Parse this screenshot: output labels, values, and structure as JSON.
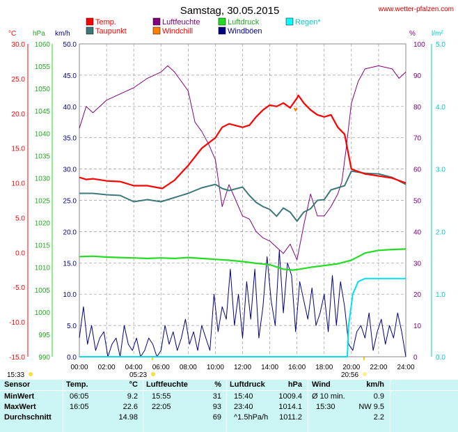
{
  "title": "Samstag, 30.05.2015",
  "website": "www.wetter-pfalzen.com",
  "units": {
    "temp": "°C",
    "pressure": "hPa",
    "wind": "km/h",
    "humidity": "%",
    "rain": "l/m²"
  },
  "colors": {
    "temp": "#ff0000",
    "dewpoint": "#3d7878",
    "humidity": "#800080",
    "windchill": "#ff8000",
    "pressure": "#22dd22",
    "gusts": "#000080",
    "rain": "#00e0f0"
  },
  "legend": [
    {
      "label": "Temp.",
      "color": "#ff0000",
      "text_color": "#ff0000"
    },
    {
      "label": "Luftfeuchte",
      "color": "#800080",
      "text_color": "#800080"
    },
    {
      "label": "Luftdruck",
      "color": "#22dd22",
      "text_color": "#22aa22"
    },
    {
      "label": "Regen*",
      "color": "#00ffff",
      "text_color": "#00cccc"
    },
    {
      "label": "Taupunkt",
      "color": "#3d7878",
      "text_color": "#ff0000"
    },
    {
      "label": "Windchill",
      "color": "#ff8000",
      "text_color": "#ff0000"
    },
    {
      "label": "Windböen",
      "color": "#000080",
      "text_color": "#000080"
    }
  ],
  "sun_labels": {
    "sunrise": "05:23",
    "sunset": "20:56",
    "left": "15:33"
  },
  "chart_data": {
    "type": "line",
    "x_ticks": [
      "00:00",
      "02:00",
      "04:00",
      "06:00",
      "08:00",
      "10:00",
      "12:00",
      "14:00",
      "16:00",
      "18:00",
      "20:00",
      "22:00",
      "24:00"
    ],
    "axes": {
      "temp": {
        "unit": "°C",
        "range": [
          -15,
          30
        ],
        "ticks": [
          "30.0",
          "25.0",
          "20.0",
          "15.0",
          "10.0",
          "5.0",
          "0.0",
          "-5.0",
          "-10.0",
          "-15.0"
        ]
      },
      "pressure": {
        "unit": "hPa",
        "range": [
          990,
          1060
        ],
        "ticks": [
          "1060",
          "1055",
          "1050",
          "1045",
          "1040",
          "1035",
          "1030",
          "1025",
          "1020",
          "1015",
          "1010",
          "1005",
          "1000",
          "995",
          "990"
        ]
      },
      "wind": {
        "unit": "km/h",
        "range": [
          0,
          50
        ],
        "ticks": [
          "50.0",
          "45.0",
          "40.0",
          "35.0",
          "30.0",
          "25.0",
          "20.0",
          "15.0",
          "10.0",
          "5.0",
          "0.0"
        ]
      },
      "humidity": {
        "unit": "%",
        "range": [
          0,
          100
        ],
        "ticks": [
          "100",
          "90",
          "80",
          "70",
          "60",
          "50",
          "40",
          "30",
          "20",
          "10",
          "0"
        ]
      },
      "rain": {
        "unit": "l/m²",
        "range": [
          0,
          5
        ],
        "ticks": [
          "5.0",
          "4.0",
          "3.0",
          "2.0",
          "1.0",
          "0.0"
        ]
      }
    },
    "series": [
      {
        "name": "Temp.",
        "axis": "temp",
        "x": [
          0,
          0.5,
          1,
          2,
          3,
          4,
          5,
          6.1,
          7,
          8,
          9,
          10,
          10.5,
          11,
          12,
          12.5,
          13,
          13.5,
          14,
          14.5,
          15,
          15.5,
          16,
          16.1,
          16.5,
          17,
          17.5,
          18,
          18.5,
          19,
          19.5,
          20,
          21,
          22,
          23,
          24
        ],
        "y": [
          10.8,
          10.5,
          10.6,
          10.3,
          10.2,
          9.6,
          9.6,
          9.2,
          10.4,
          12.5,
          15,
          16.5,
          18,
          18.5,
          18,
          18.3,
          19.5,
          20.5,
          21.2,
          21,
          21.5,
          20.8,
          22.2,
          22.6,
          21.5,
          20.5,
          19.8,
          19.5,
          19.8,
          18,
          17,
          12,
          11.3,
          11,
          10.7,
          10
        ]
      },
      {
        "name": "Taupunkt",
        "axis": "temp",
        "x": [
          0,
          1,
          2,
          3,
          4,
          5,
          6,
          7,
          8,
          9,
          10,
          10.5,
          11,
          12,
          12.5,
          13,
          13.5,
          14,
          14.5,
          15,
          15.5,
          16,
          16.5,
          17,
          17.5,
          18,
          18.5,
          19,
          19.5,
          20,
          21,
          22,
          23,
          24
        ],
        "y": [
          8.5,
          8.5,
          8.3,
          8.2,
          7.3,
          7.6,
          7.3,
          7.9,
          8.5,
          9.3,
          9.8,
          9.2,
          8.9,
          9.4,
          8.2,
          7.2,
          6.6,
          6.2,
          5.2,
          6.4,
          5.8,
          4.5,
          5.8,
          6.3,
          7.5,
          7.6,
          9.0,
          9.3,
          9.6,
          11.7,
          11.4,
          11.3,
          10.8,
          9.8
        ]
      },
      {
        "name": "Windchill",
        "axis": "temp",
        "x": [
          15.8,
          15.9,
          16
        ],
        "y": [
          20.8,
          20.4,
          20.8
        ]
      },
      {
        "name": "Luftfeuchte",
        "axis": "humidity",
        "x": [
          0,
          0.5,
          1,
          2,
          3,
          4,
          5,
          6,
          6.5,
          7,
          8,
          8.5,
          9,
          9.5,
          10,
          10.5,
          11,
          11.5,
          12,
          12.5,
          13,
          13.5,
          14,
          14.5,
          15,
          15.5,
          16,
          16.5,
          17,
          17.5,
          18,
          18.5,
          19,
          19.3,
          19.6,
          20,
          20.5,
          21,
          22,
          23,
          23.5,
          24
        ],
        "y": [
          73,
          80,
          78,
          82,
          84,
          86,
          89,
          91,
          93,
          91,
          85,
          75,
          72,
          68,
          63,
          48,
          55,
          50,
          45,
          44,
          40,
          38,
          37,
          35,
          33,
          36,
          31,
          42,
          52,
          45,
          45,
          48,
          52,
          56,
          66,
          81,
          88,
          92,
          93,
          92,
          89,
          91
        ]
      },
      {
        "name": "Luftdruck",
        "axis": "pressure",
        "x": [
          0,
          1,
          2,
          3,
          4,
          5,
          6,
          7,
          8,
          9,
          10,
          11,
          12,
          13,
          14,
          15,
          15.7,
          16,
          17,
          18,
          19,
          20,
          21,
          22,
          23,
          24
        ],
        "y": [
          1012.4,
          1012.5,
          1012.3,
          1012.2,
          1012.1,
          1012,
          1012.1,
          1012,
          1012.2,
          1012,
          1011.8,
          1011.6,
          1011.3,
          1010.9,
          1010.6,
          1009.6,
          1009.4,
          1009.5,
          1010,
          1010.4,
          1010.8,
          1011.6,
          1013.2,
          1013.8,
          1014,
          1014.1
        ]
      },
      {
        "name": "Windböen",
        "axis": "wind",
        "x": [
          0,
          0.3,
          0.6,
          0.9,
          1.2,
          1.5,
          1.8,
          2.1,
          2.4,
          2.7,
          3,
          3.3,
          3.6,
          3.9,
          4.2,
          4.5,
          4.8,
          5.1,
          5.4,
          5.7,
          6,
          6.3,
          6.6,
          6.9,
          7.2,
          7.5,
          7.8,
          8.1,
          8.4,
          8.7,
          9,
          9.3,
          9.6,
          9.9,
          10.2,
          10.5,
          10.8,
          11.1,
          11.4,
          11.7,
          12,
          12.3,
          12.6,
          12.9,
          13.2,
          13.5,
          13.8,
          14.1,
          14.4,
          14.7,
          15,
          15.3,
          15.6,
          15.9,
          16.2,
          16.5,
          16.8,
          17.1,
          17.4,
          17.7,
          18,
          18.3,
          18.6,
          18.9,
          19.2,
          19.5,
          19.8,
          20.1,
          20.4,
          20.7,
          21,
          21.3,
          21.6,
          21.9,
          22.2,
          22.5,
          22.8,
          23.1,
          23.4,
          23.7,
          24
        ],
        "y": [
          3,
          8,
          2,
          5,
          1,
          3,
          4,
          0,
          2,
          3,
          0,
          5,
          2,
          1,
          3,
          0,
          1,
          3,
          2,
          0,
          1,
          5,
          2,
          4,
          1,
          3,
          6,
          2,
          4,
          1,
          5,
          3,
          1,
          10,
          4,
          8,
          6,
          14,
          5,
          10,
          3,
          12,
          6,
          14,
          3,
          8,
          16,
          9,
          5,
          17,
          7,
          15,
          13,
          4,
          12,
          9,
          6,
          11,
          5,
          7,
          10,
          4,
          13,
          5,
          12,
          8,
          2,
          1,
          4,
          5,
          3,
          7,
          1,
          4,
          6,
          2,
          5,
          3,
          7,
          4,
          0
        ]
      },
      {
        "name": "Regen*",
        "axis": "rain",
        "x": [
          0,
          19.7,
          19.8,
          20.1,
          20.5,
          21,
          22,
          23,
          24
        ],
        "y": [
          0,
          0,
          0.5,
          1,
          1.2,
          1.25,
          1.25,
          1.25,
          1.25
        ]
      }
    ],
    "grid": true
  },
  "stats": {
    "headers": {
      "sensor": "Sensor",
      "temp": "Temp.",
      "temp_unit": "°C",
      "hum": "Luftfeuchte",
      "hum_unit": "%",
      "press": "Luftdruck",
      "press_unit": "hPa",
      "wind": "Wind",
      "wind_unit": "km/h"
    },
    "rows": [
      {
        "label": "MinWert",
        "temp_time": "06:05",
        "temp_val": "9.2",
        "hum_time": "15:55",
        "hum_val": "31",
        "press_time": "15:40",
        "press_val": "1009.4",
        "wind_time": "Ø 10 min.",
        "wind_val": "0.9"
      },
      {
        "label": "MaxWert",
        "temp_time": "16:05",
        "temp_val": "22.6",
        "hum_time": "22:05",
        "hum_val": "93",
        "press_time": "23:40",
        "press_val": "1014.1",
        "wind_time": "15:30",
        "wind_val": "NW 9.5"
      },
      {
        "label": "Durchschnitt",
        "temp_time": "",
        "temp_val": "14.98",
        "hum_time": "",
        "hum_val": "69",
        "press_time": "^1.5hPa/h",
        "press_val": "1011.2",
        "wind_time": "",
        "wind_val": "2.2"
      }
    ]
  }
}
